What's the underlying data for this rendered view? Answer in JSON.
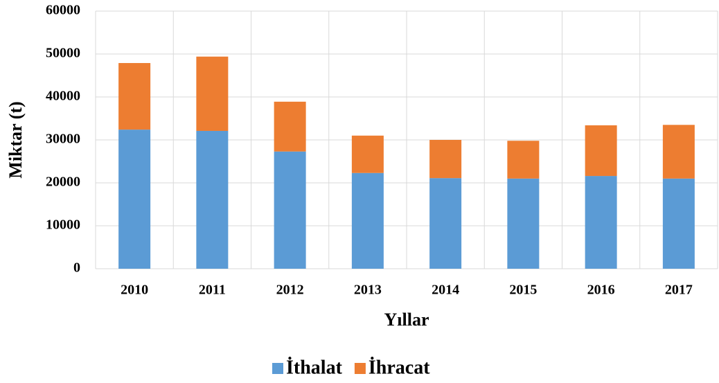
{
  "chart_data": {
    "type": "stacked_bar",
    "x_label": "Yıllar",
    "y_label": "Miktar (t)",
    "categories": [
      "2010",
      "2011",
      "2012",
      "2013",
      "2014",
      "2015",
      "2016",
      "2017"
    ],
    "series": [
      {
        "name": "İthalat",
        "color": "#5b9bd5",
        "values": [
          32400,
          32100,
          27300,
          22300,
          21100,
          21000,
          21600,
          21000
        ]
      },
      {
        "name": "İhracat",
        "color": "#ed7d31",
        "values": [
          15500,
          17300,
          11600,
          8700,
          8900,
          8800,
          11800,
          12500
        ]
      }
    ],
    "ylim": [
      0,
      60000
    ],
    "yticks": [
      0,
      10000,
      20000,
      30000,
      40000,
      50000,
      60000
    ],
    "grid": true,
    "legend": "bottom"
  }
}
